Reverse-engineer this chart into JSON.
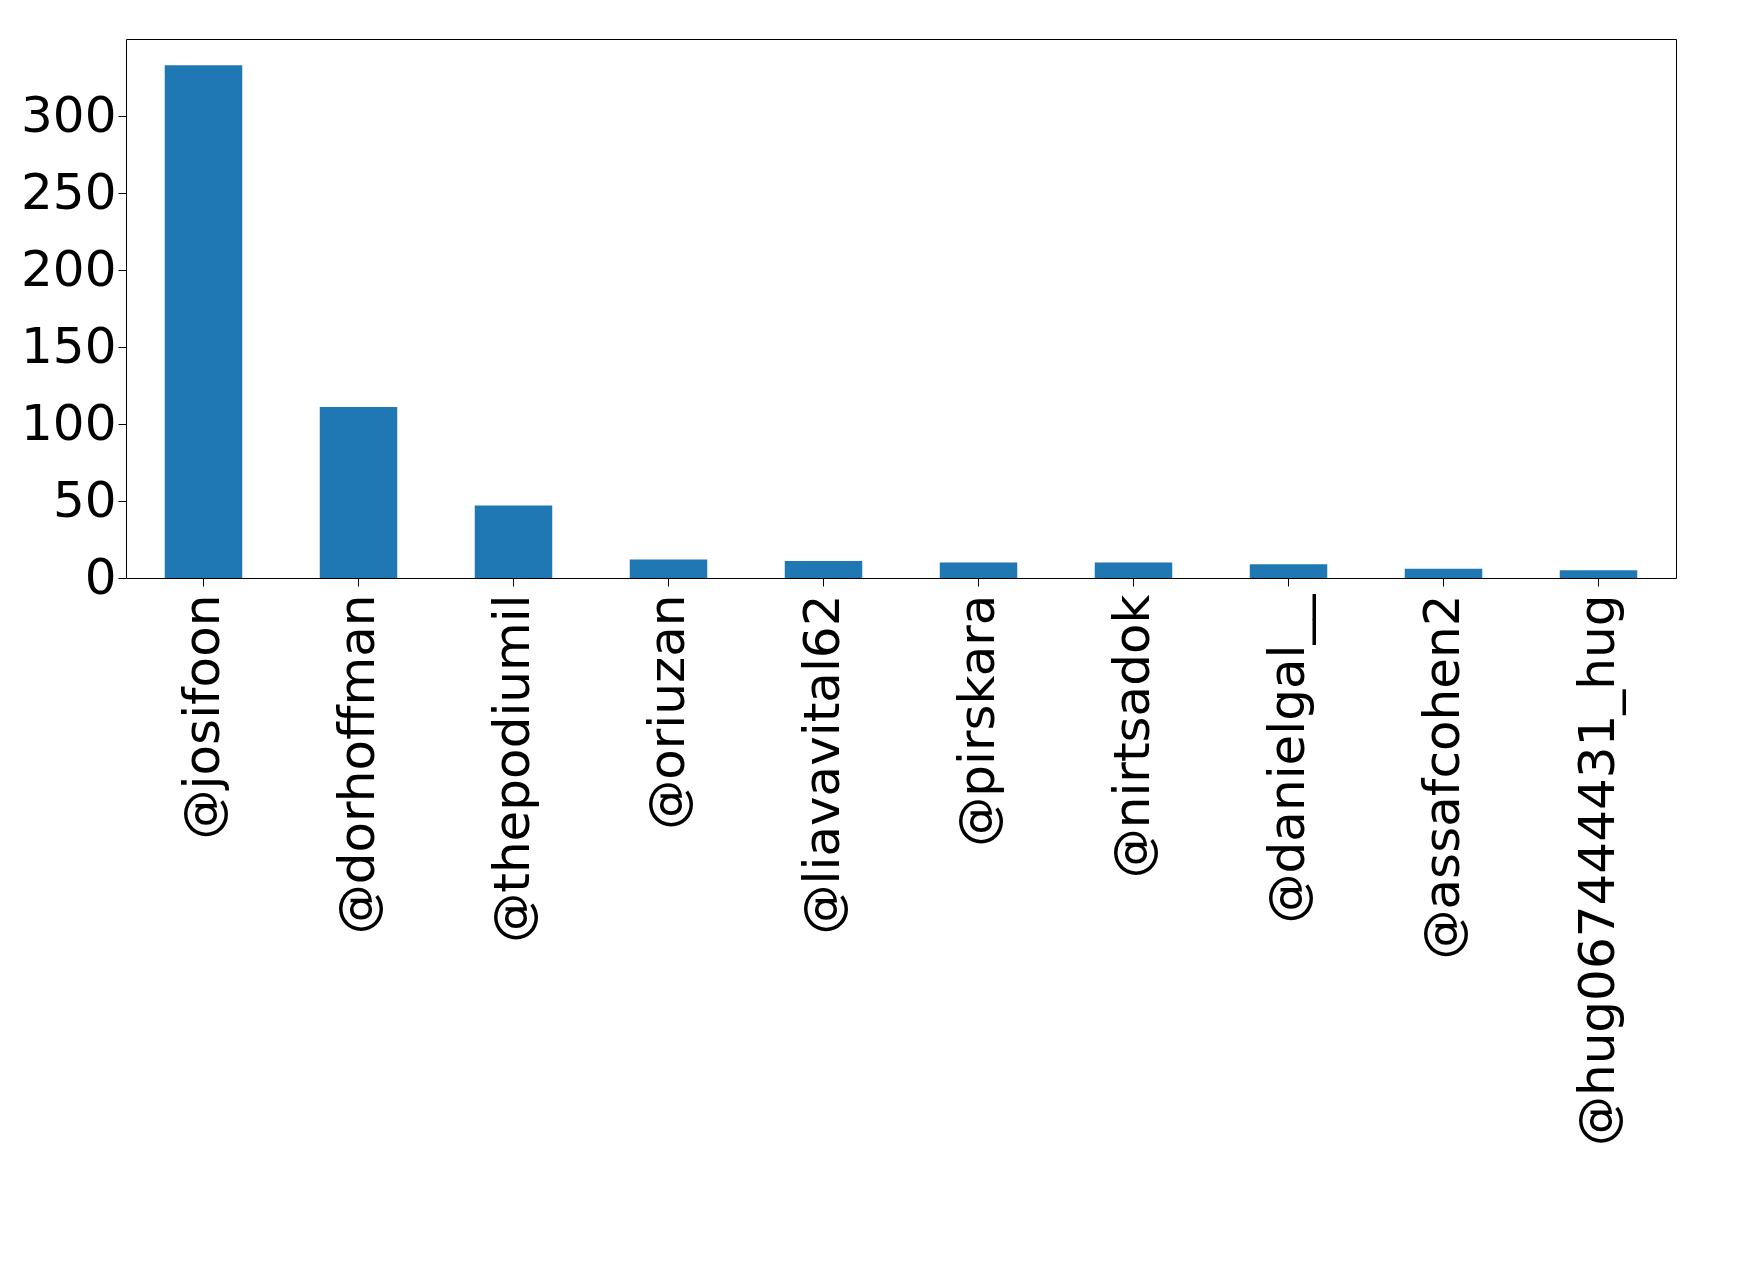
{
  "chart_data": {
    "type": "bar",
    "categories": [
      "@josifoon",
      "@dorhoffman",
      "@thepodiumil",
      "@oriuzan",
      "@liavavital62",
      "@pirskara",
      "@nirtsadok",
      "@danielgal__",
      "@assafcohen2",
      "@hug067444431_hug"
    ],
    "values": [
      333,
      111,
      47,
      12,
      11,
      10,
      10,
      9,
      6,
      5
    ],
    "color": "#1f77b4",
    "ylim": [
      0,
      350
    ],
    "yticks": [
      0,
      50,
      100,
      150,
      200,
      250,
      300
    ],
    "grid": false,
    "legend": false
  }
}
